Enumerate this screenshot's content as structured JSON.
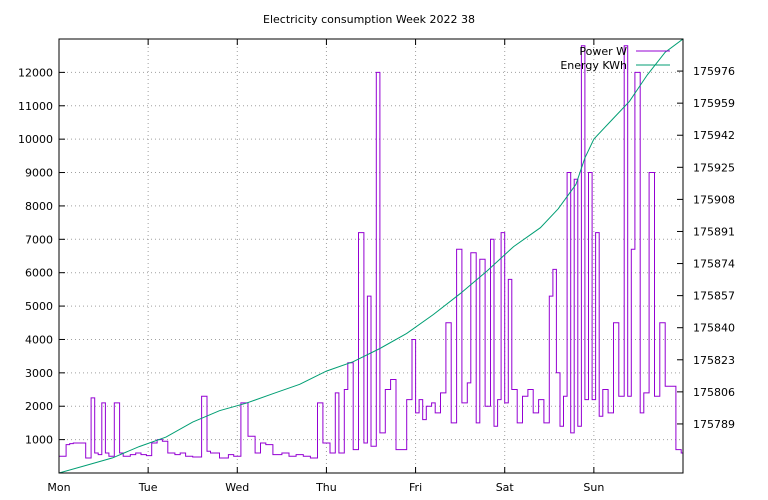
{
  "chart_data": {
    "type": "line",
    "title": "Electricity consumption Week 2022 38",
    "xlabel": "",
    "ylabel": "",
    "x_ticks": [
      "Mon",
      "Tue",
      "Wed",
      "Thu",
      "Fri",
      "Sat",
      "Sun"
    ],
    "xlim": [
      0,
      7
    ],
    "ylim": [
      0,
      13000
    ],
    "y_ticks": [
      1000,
      2000,
      3000,
      4000,
      5000,
      6000,
      7000,
      8000,
      9000,
      10000,
      11000,
      12000
    ],
    "y2lim": [
      175763,
      175993
    ],
    "y2_ticks": [
      175789,
      175806,
      175823,
      175840,
      175857,
      175874,
      175891,
      175908,
      175925,
      175942,
      175959,
      175976
    ],
    "grid": true,
    "legend_position": "top-right",
    "series": [
      {
        "name": "Power W",
        "axis": "left",
        "color": "#9400d3",
        "x": [
          0.0,
          0.08,
          0.12,
          0.16,
          0.3,
          0.36,
          0.4,
          0.44,
          0.48,
          0.52,
          0.56,
          0.62,
          0.68,
          0.72,
          0.8,
          0.86,
          0.92,
          0.98,
          1.04,
          1.1,
          1.16,
          1.22,
          1.3,
          1.36,
          1.42,
          1.5,
          1.6,
          1.66,
          1.7,
          1.8,
          1.9,
          1.96,
          2.04,
          2.12,
          2.2,
          2.26,
          2.32,
          2.4,
          2.5,
          2.58,
          2.66,
          2.74,
          2.82,
          2.9,
          2.96,
          3.04,
          3.1,
          3.14,
          3.2,
          3.24,
          3.3,
          3.36,
          3.42,
          3.46,
          3.5,
          3.56,
          3.6,
          3.66,
          3.72,
          3.78,
          3.84,
          3.9,
          3.96,
          4.0,
          4.04,
          4.08,
          4.12,
          4.18,
          4.22,
          4.28,
          4.34,
          4.4,
          4.46,
          4.52,
          4.58,
          4.62,
          4.68,
          4.72,
          4.78,
          4.84,
          4.88,
          4.92,
          4.96,
          5.0,
          5.04,
          5.08,
          5.14,
          5.2,
          5.26,
          5.32,
          5.38,
          5.44,
          5.5,
          5.54,
          5.58,
          5.62,
          5.66,
          5.7,
          5.74,
          5.78,
          5.82,
          5.86,
          5.9,
          5.94,
          5.98,
          6.02,
          6.06,
          6.1,
          6.16,
          6.22,
          6.28,
          6.34,
          6.38,
          6.42,
          6.46,
          6.52,
          6.56,
          6.62,
          6.68,
          6.74,
          6.8,
          6.86,
          6.92,
          6.98,
          7.0
        ],
        "y": [
          500,
          850,
          880,
          900,
          450,
          2250,
          600,
          550,
          2100,
          600,
          500,
          2100,
          600,
          500,
          550,
          600,
          550,
          520,
          900,
          1000,
          950,
          600,
          550,
          600,
          500,
          480,
          2300,
          650,
          600,
          450,
          550,
          500,
          2100,
          1100,
          600,
          900,
          850,
          550,
          600,
          500,
          550,
          500,
          450,
          2100,
          900,
          600,
          2400,
          600,
          2500,
          3300,
          700,
          7200,
          900,
          5300,
          800,
          12000,
          1200,
          2500,
          2800,
          700,
          700,
          2200,
          4000,
          1800,
          2200,
          1600,
          2000,
          2100,
          1800,
          2400,
          4500,
          1500,
          6700,
          2100,
          2700,
          6600,
          1500,
          6400,
          2000,
          7000,
          1400,
          2200,
          7200,
          2100,
          5800,
          2500,
          1500,
          2300,
          2500,
          1800,
          2200,
          1500,
          5300,
          6100,
          3000,
          1400,
          2300,
          9000,
          1200,
          8800,
          1400,
          12800,
          2200,
          9000,
          2200,
          7200,
          1700,
          2500,
          1800,
          4500,
          2300,
          12800,
          2300,
          6700,
          12000,
          1800,
          2400,
          9000,
          2300,
          4500,
          2600,
          2600,
          700,
          600,
          700
        ],
        "values_note_hidden": ""
      },
      {
        "name": "Energy KWh",
        "axis": "right",
        "color": "#009e73",
        "x": [
          0.0,
          0.3,
          0.6,
          0.9,
          1.2,
          1.5,
          1.8,
          2.1,
          2.4,
          2.7,
          3.0,
          3.3,
          3.6,
          3.9,
          4.2,
          4.5,
          4.8,
          5.1,
          5.4,
          5.6,
          5.8,
          5.9,
          6.0,
          6.2,
          6.4,
          6.6,
          6.8,
          7.0
        ],
        "y": [
          175763,
          175767,
          175771,
          175777,
          175782,
          175790,
          175796,
          175800,
          175805,
          175810,
          175817,
          175822,
          175829,
          175837,
          175847,
          175858,
          175870,
          175883,
          175893,
          175903,
          175916,
          175930,
          175940,
          175950,
          175960,
          175974,
          175986,
          175993
        ]
      }
    ]
  }
}
